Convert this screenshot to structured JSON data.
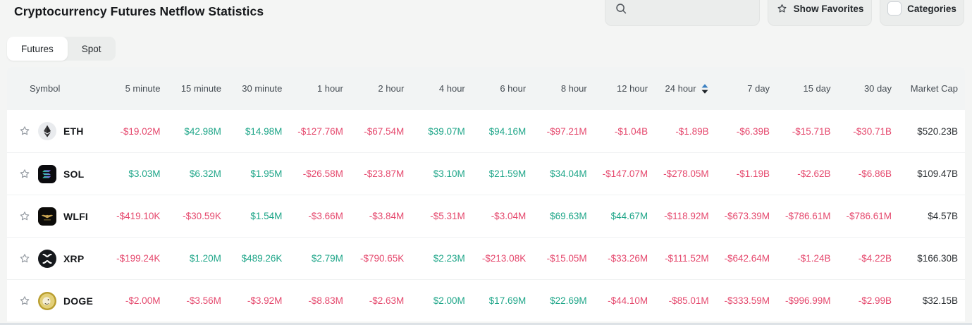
{
  "page": {
    "title": "Cryptocurrency Futures Netflow Statistics"
  },
  "search": {
    "placeholder": "",
    "value": "",
    "icon": "search-icon"
  },
  "buttons": {
    "show_favorites": {
      "label": "Show Favorites",
      "icon": "star-icon"
    },
    "categories": {
      "label": "Categories",
      "icon": "checkbox-icon"
    }
  },
  "tabs": [
    {
      "label": "Futures",
      "active": true
    },
    {
      "label": "Spot",
      "active": false
    }
  ],
  "table": {
    "columns": [
      "Symbol",
      "5 minute",
      "15 minute",
      "30 minute",
      "1 hour",
      "2 hour",
      "4 hour",
      "6 hour",
      "8 hour",
      "12 hour",
      "24 hour",
      "7 day",
      "15 day",
      "30 day",
      "Market Cap"
    ],
    "sort": {
      "column": "24 hour",
      "icon": "sort-arrows-icon"
    },
    "row_icons": {
      "favorite": "star-outline-icon"
    },
    "rows": [
      {
        "symbol": "ETH",
        "icon": "eth-icon",
        "values": [
          "-$19.02M",
          "$42.98M",
          "$14.98M",
          "-$127.76M",
          "-$67.54M",
          "$39.07M",
          "$94.16M",
          "-$97.21M",
          "-$1.04B",
          "-$1.89B",
          "-$6.39B",
          "-$15.71B",
          "-$30.71B"
        ],
        "market_cap": "$520.23B"
      },
      {
        "symbol": "SOL",
        "icon": "sol-icon",
        "values": [
          "$3.03M",
          "$6.32M",
          "$1.95M",
          "-$26.58M",
          "-$23.87M",
          "$3.10M",
          "$21.59M",
          "$34.04M",
          "-$147.07M",
          "-$278.05M",
          "-$1.19B",
          "-$2.62B",
          "-$6.86B"
        ],
        "market_cap": "$109.47B"
      },
      {
        "symbol": "WLFI",
        "icon": "wlfi-icon",
        "values": [
          "-$419.10K",
          "-$30.59K",
          "$1.54M",
          "-$3.66M",
          "-$3.84M",
          "-$5.31M",
          "-$3.04M",
          "$69.63M",
          "$44.67M",
          "-$118.92M",
          "-$673.39M",
          "-$786.61M",
          "-$786.61M"
        ],
        "market_cap": "$4.57B"
      },
      {
        "symbol": "XRP",
        "icon": "xrp-icon",
        "values": [
          "-$199.24K",
          "$1.20M",
          "$489.26K",
          "$2.79M",
          "-$790.65K",
          "$2.23M",
          "-$213.08K",
          "-$15.05M",
          "-$33.26M",
          "-$111.52M",
          "-$642.64M",
          "-$1.24B",
          "-$4.22B"
        ],
        "market_cap": "$166.30B"
      },
      {
        "symbol": "DOGE",
        "icon": "doge-icon",
        "values": [
          "-$2.00M",
          "-$3.56M",
          "-$3.92M",
          "-$8.83M",
          "-$2.63M",
          "$2.00M",
          "$17.69M",
          "$22.69M",
          "-$44.10M",
          "-$85.01M",
          "-$333.59M",
          "-$996.99M",
          "-$2.99B"
        ],
        "market_cap": "$32.15B"
      }
    ]
  },
  "colors": {
    "positive": "#1fa689",
    "negative": "#e5486d",
    "sort_active_arrow": "#3a7fc1"
  }
}
